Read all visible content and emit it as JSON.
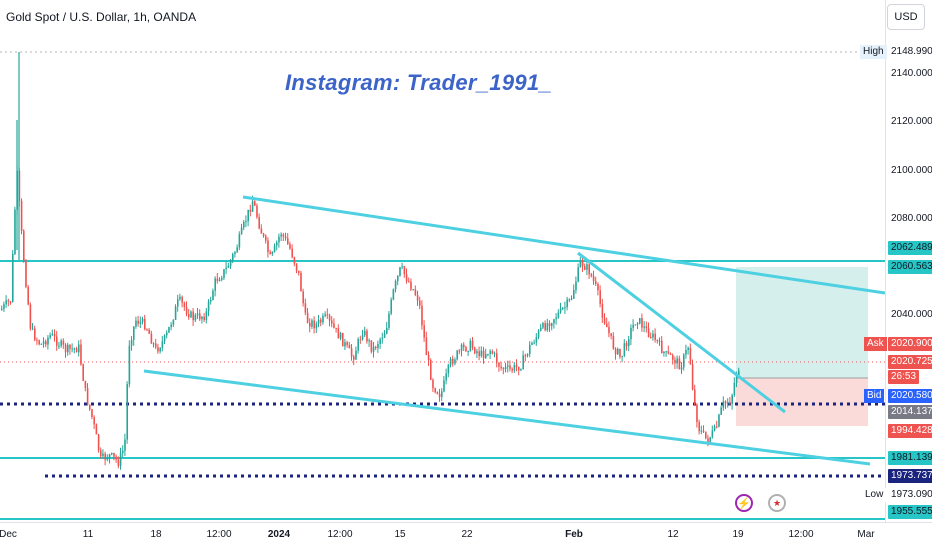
{
  "header": {
    "symbol_title": "Gold Spot / U.S. Dollar, 1h, OANDA"
  },
  "watermark": "Instagram: Trader_1991_",
  "currency_button": "USD",
  "price_axis": {
    "ticks": [
      "2140.000",
      "2120.000",
      "2100.000",
      "2080.000",
      "2040.000"
    ],
    "labels": {
      "high_tag": "High",
      "high_value": "2148.990",
      "r1": "2062.489",
      "r2": "2060.563",
      "ask_tag": "Ask",
      "ask_value": "2020.900",
      "last_price": "2020.725",
      "countdown": "26:53",
      "bid_tag": "Bid",
      "bid_value": "2020.580",
      "entry": "2014.137",
      "stop": "1994.428",
      "s1": "1981.139",
      "s2": "1973.737",
      "low_tag": "Low",
      "low_value": "1973.090",
      "s3": "1955.555"
    }
  },
  "time_axis": {
    "labels": [
      "Dec",
      "11",
      "18",
      "12:00",
      "2024",
      "12:00",
      "15",
      "22",
      "Feb",
      "12",
      "19",
      "12:00",
      "Mar"
    ]
  },
  "colors": {
    "up": "#26a69a",
    "down": "#ef5350",
    "trendline": "#4dd0e1",
    "level": "#26c6c6",
    "dotted": "#1a237e",
    "profit_zone": "#d4efec",
    "loss_zone": "#fbdada"
  },
  "events": {
    "lightning_icon": "lightning-icon",
    "flag_icon": "us-flag-icon"
  }
}
